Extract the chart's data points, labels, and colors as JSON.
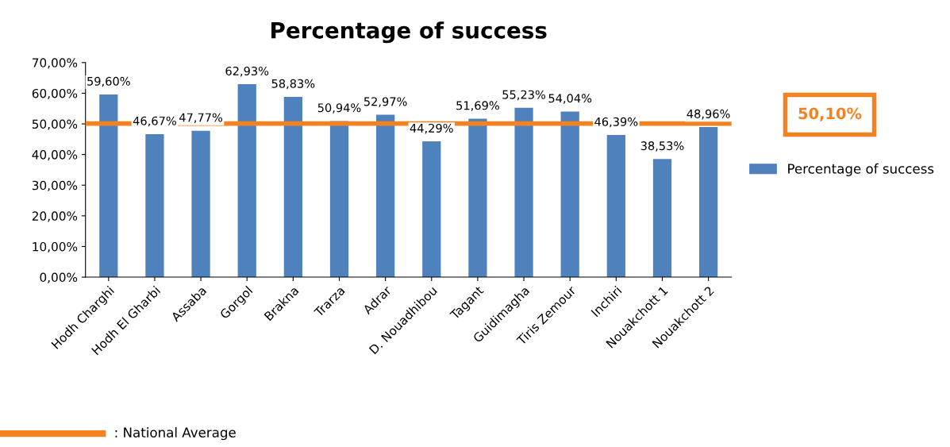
{
  "chart_data": {
    "type": "bar",
    "title": "Percentage of success",
    "categories": [
      "Hodh Charghi",
      "Hodh El Gharbi",
      "Assaba",
      "Gorgol",
      "Brakna",
      "Trarza",
      "Adrar",
      "D. Nouadhibou",
      "Tagant",
      "Guidimagha",
      "Tiris Zemour",
      "Inchiri",
      "Nouakchott 1",
      "Nouakchott 2"
    ],
    "series": [
      {
        "name": "Percentage of success",
        "color": "#4f81bd",
        "values": [
          59.6,
          46.67,
          47.77,
          62.93,
          58.83,
          50.94,
          52.97,
          44.29,
          51.69,
          55.23,
          54.04,
          46.39,
          38.53,
          48.96
        ],
        "value_labels": [
          "59,60%",
          "46,67%",
          "47,77%",
          "62,93%",
          "58,83%",
          "50,94%",
          "52,97%",
          "44,29%",
          "51,69%",
          "55,23%",
          "54,04%",
          "46,39%",
          "38,53%",
          "48,96%"
        ]
      }
    ],
    "ylim": [
      0,
      70
    ],
    "yticks": [
      {
        "value": 0,
        "label": "0,00%"
      },
      {
        "value": 10,
        "label": "10,00%"
      },
      {
        "value": 20,
        "label": "20,00%"
      },
      {
        "value": 30,
        "label": "30,00%"
      },
      {
        "value": 40,
        "label": "40,00%"
      },
      {
        "value": 50,
        "label": "50,00%"
      },
      {
        "value": 60,
        "label": "60,00%"
      },
      {
        "value": 70,
        "label": "70,00%"
      }
    ],
    "ref_lines": [
      {
        "axis": "y",
        "value": 50.1,
        "label": "50,10%",
        "color": "#f58220"
      }
    ],
    "annotations": [
      ": National Average"
    ],
    "legend": "right",
    "grid": false
  }
}
